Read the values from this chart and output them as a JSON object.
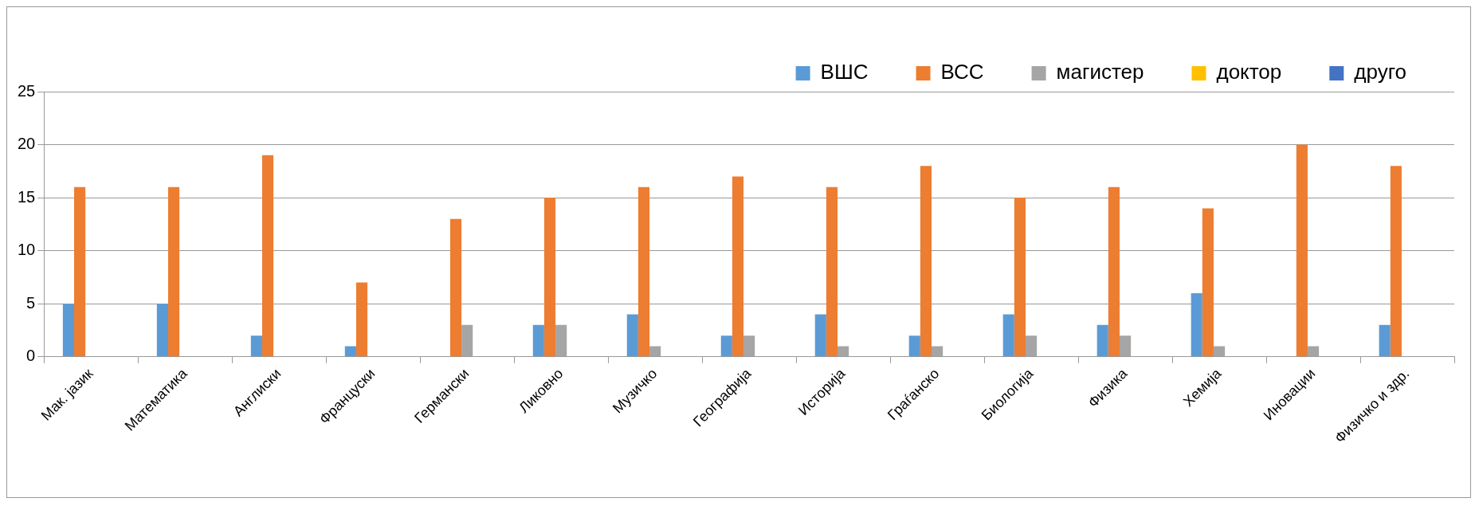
{
  "chart_data": {
    "type": "bar",
    "categories": [
      "Мак. јазик",
      "Математика",
      "Англиски",
      "Француски",
      "Германски",
      "Ликовно",
      "Музичко",
      "Географија",
      "Историја",
      "Граѓанско",
      "Биологија",
      "Физика",
      "Хемија",
      "Иновации",
      "Физичко и здр."
    ],
    "series": [
      {
        "name": "ВШС",
        "color": "#5b9bd5",
        "values": [
          5,
          5,
          2,
          1,
          0,
          3,
          4,
          2,
          4,
          2,
          4,
          3,
          6,
          0,
          3
        ]
      },
      {
        "name": "ВСС",
        "color": "#ed7d31",
        "values": [
          16,
          16,
          19,
          7,
          13,
          15,
          16,
          17,
          16,
          18,
          15,
          16,
          14,
          20,
          18
        ]
      },
      {
        "name": "магистер",
        "color": "#a5a5a5",
        "values": [
          0,
          0,
          0,
          0,
          3,
          3,
          1,
          2,
          1,
          1,
          2,
          2,
          1,
          1,
          0
        ]
      },
      {
        "name": "доктор",
        "color": "#ffc000",
        "values": [
          0,
          0,
          0,
          0,
          0,
          0,
          0,
          0,
          0,
          0,
          0,
          0,
          0,
          0,
          0
        ]
      },
      {
        "name": "друго",
        "color": "#4472c4",
        "values": [
          0,
          0,
          0,
          0,
          0,
          0,
          0,
          0,
          0,
          0,
          0,
          0,
          0,
          0,
          0
        ]
      }
    ],
    "ylim": [
      0,
      25
    ],
    "yticks": [
      0,
      5,
      10,
      15,
      20,
      25
    ],
    "grid": "y",
    "legend": "top right"
  }
}
